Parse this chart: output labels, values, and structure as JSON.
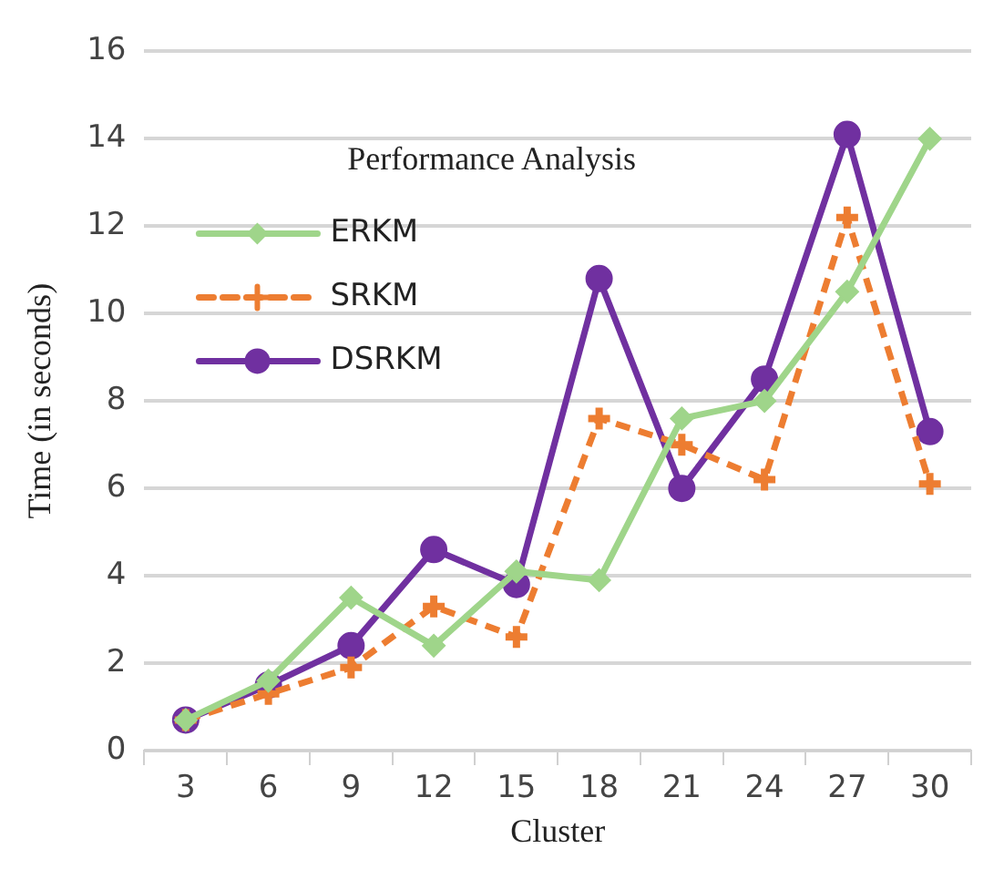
{
  "chart_data": {
    "type": "line",
    "title": "Performance Analysis",
    "xlabel": "Cluster",
    "ylabel": "Time (in seconds)",
    "categories": [
      "3",
      "6",
      "9",
      "12",
      "15",
      "18",
      "21",
      "24",
      "27",
      "30"
    ],
    "series": [
      {
        "name": "ERKM",
        "color": "#9fd58a",
        "marker": "diamond",
        "line_style": "solid",
        "values": [
          0.7,
          1.6,
          3.5,
          2.4,
          4.1,
          3.9,
          7.6,
          8.0,
          10.5,
          14.0
        ]
      },
      {
        "name": "SRKM",
        "color": "#ed7d31",
        "marker": "cross",
        "line_style": "dashed",
        "values": [
          0.7,
          1.3,
          1.9,
          3.3,
          2.6,
          7.6,
          7.0,
          6.2,
          12.2,
          6.1
        ]
      },
      {
        "name": "DSRKM",
        "color": "#7030a0",
        "marker": "circle",
        "line_style": "solid",
        "values": [
          0.7,
          1.5,
          2.4,
          4.6,
          3.8,
          10.8,
          6.0,
          8.5,
          14.1,
          7.3
        ]
      }
    ],
    "ylim": [
      0,
      16
    ],
    "yticks": [
      0,
      2,
      4,
      6,
      8,
      10,
      12,
      14,
      16
    ],
    "grid": "y",
    "legend": "top left"
  }
}
